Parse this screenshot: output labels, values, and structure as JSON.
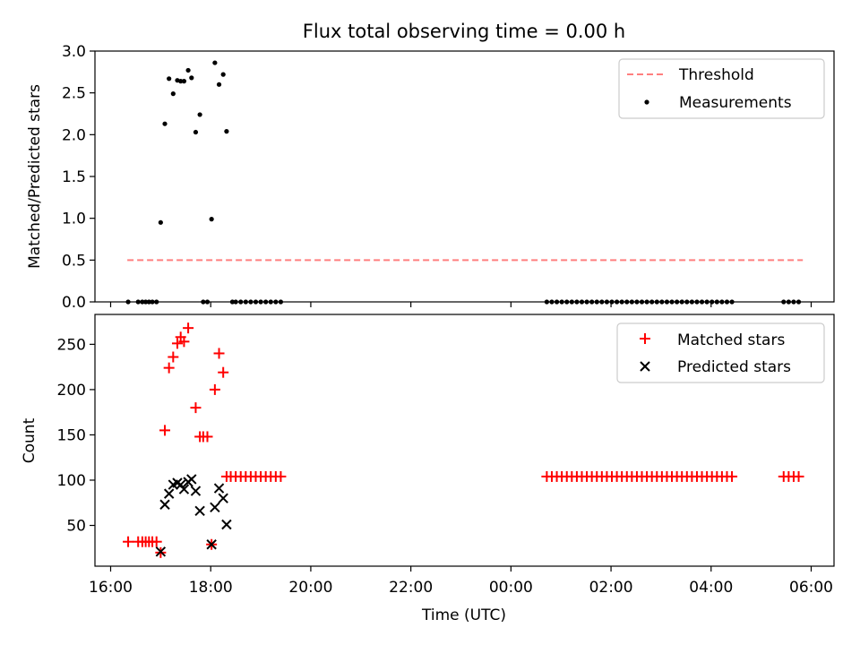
{
  "chart_data": [
    {
      "type": "scatter",
      "title": "Flux total observing time = 0.00 h",
      "xlabel": "",
      "ylabel": "Matched/Predicted stars",
      "xlim": [
        "16:00",
        "06:00"
      ],
      "ylim": [
        0,
        3.0
      ],
      "yticks": [
        "0.0",
        "0.5",
        "1.0",
        "1.5",
        "2.0",
        "2.5",
        "3.0"
      ],
      "grid": false,
      "legend": "top-right",
      "threshold": {
        "name": "Threshold",
        "value": 0.5,
        "x": [
          "16:20",
          "05:50"
        ],
        "color": "#ff7f7f",
        "style": "dashed"
      },
      "series": [
        {
          "name": "Measurements",
          "color": "#000000",
          "marker": "dot",
          "points": [
            [
              "16:21",
              0.0
            ],
            [
              "16:33",
              0.0
            ],
            [
              "16:38",
              0.0
            ],
            [
              "16:42",
              0.0
            ],
            [
              "16:46",
              0.0
            ],
            [
              "16:50",
              0.0
            ],
            [
              "16:55",
              0.0
            ],
            [
              "17:00",
              0.95
            ],
            [
              "17:05",
              2.13
            ],
            [
              "17:10",
              2.67
            ],
            [
              "17:15",
              2.49
            ],
            [
              "17:20",
              2.65
            ],
            [
              "17:24",
              2.64
            ],
            [
              "17:28",
              2.64
            ],
            [
              "17:33",
              2.77
            ],
            [
              "17:37",
              2.68
            ],
            [
              "17:42",
              2.03
            ],
            [
              "17:47",
              2.24
            ],
            [
              "17:51",
              0.0
            ],
            [
              "17:56",
              0.0
            ],
            [
              "18:01",
              0.99
            ],
            [
              "18:05",
              2.86
            ],
            [
              "18:10",
              2.6
            ],
            [
              "18:15",
              2.72
            ],
            [
              "18:19",
              2.04
            ],
            [
              "18:26",
              0.0
            ],
            [
              "18:30",
              0.0
            ],
            [
              "18:36",
              0.0
            ],
            [
              "18:42",
              0.0
            ],
            [
              "18:48",
              0.0
            ],
            [
              "18:54",
              0.0
            ],
            [
              "19:00",
              0.0
            ],
            [
              "19:06",
              0.0
            ],
            [
              "19:12",
              0.0
            ],
            [
              "19:18",
              0.0
            ],
            [
              "19:24",
              0.0
            ],
            [
              "00:43",
              0.0
            ],
            [
              "00:49",
              0.0
            ],
            [
              "00:55",
              0.0
            ],
            [
              "01:01",
              0.0
            ],
            [
              "01:07",
              0.0
            ],
            [
              "01:13",
              0.0
            ],
            [
              "01:19",
              0.0
            ],
            [
              "01:25",
              0.0
            ],
            [
              "01:31",
              0.0
            ],
            [
              "01:37",
              0.0
            ],
            [
              "01:43",
              0.0
            ],
            [
              "01:49",
              0.0
            ],
            [
              "01:55",
              0.0
            ],
            [
              "02:01",
              0.0
            ],
            [
              "02:07",
              0.0
            ],
            [
              "02:13",
              0.0
            ],
            [
              "02:19",
              0.0
            ],
            [
              "02:25",
              0.0
            ],
            [
              "02:31",
              0.0
            ],
            [
              "02:37",
              0.0
            ],
            [
              "02:43",
              0.0
            ],
            [
              "02:49",
              0.0
            ],
            [
              "02:55",
              0.0
            ],
            [
              "03:01",
              0.0
            ],
            [
              "03:07",
              0.0
            ],
            [
              "03:13",
              0.0
            ],
            [
              "03:19",
              0.0
            ],
            [
              "03:25",
              0.0
            ],
            [
              "03:31",
              0.0
            ],
            [
              "03:37",
              0.0
            ],
            [
              "03:43",
              0.0
            ],
            [
              "03:49",
              0.0
            ],
            [
              "03:55",
              0.0
            ],
            [
              "04:01",
              0.0
            ],
            [
              "04:07",
              0.0
            ],
            [
              "04:13",
              0.0
            ],
            [
              "04:19",
              0.0
            ],
            [
              "04:25",
              0.0
            ],
            [
              "05:27",
              0.0
            ],
            [
              "05:33",
              0.0
            ],
            [
              "05:39",
              0.0
            ],
            [
              "05:45",
              0.0
            ]
          ]
        }
      ]
    },
    {
      "type": "scatter",
      "title": "",
      "xlabel": "Time (UTC)",
      "ylabel": "Count",
      "xlim": [
        "16:00",
        "06:00"
      ],
      "xticks": [
        "16:00",
        "18:00",
        "20:00",
        "22:00",
        "00:00",
        "02:00",
        "04:00",
        "06:00"
      ],
      "ylim": [
        5,
        283
      ],
      "yticks": [
        "50",
        "100",
        "150",
        "200",
        "250"
      ],
      "grid": false,
      "legend": "top-right",
      "series": [
        {
          "name": "Matched stars",
          "color": "#ff0000",
          "marker": "plus",
          "points": [
            [
              "16:21",
              32
            ],
            [
              "16:33",
              32
            ],
            [
              "16:38",
              32
            ],
            [
              "16:42",
              32
            ],
            [
              "16:46",
              32
            ],
            [
              "16:50",
              32
            ],
            [
              "16:55",
              32
            ],
            [
              "17:00",
              20
            ],
            [
              "17:05",
              155
            ],
            [
              "17:10",
              224
            ],
            [
              "17:15",
              236
            ],
            [
              "17:20",
              251
            ],
            [
              "17:24",
              258
            ],
            [
              "17:28",
              253
            ],
            [
              "17:33",
              268
            ],
            [
              "17:42",
              180
            ],
            [
              "17:47",
              148
            ],
            [
              "17:51",
              148
            ],
            [
              "17:56",
              148
            ],
            [
              "18:01",
              29
            ],
            [
              "18:05",
              200
            ],
            [
              "18:10",
              240
            ],
            [
              "18:15",
              219
            ],
            [
              "18:19",
              104
            ],
            [
              "18:24",
              104
            ],
            [
              "18:30",
              104
            ],
            [
              "18:36",
              104
            ],
            [
              "18:42",
              104
            ],
            [
              "18:48",
              104
            ],
            [
              "18:54",
              104
            ],
            [
              "19:00",
              104
            ],
            [
              "19:06",
              104
            ],
            [
              "19:12",
              104
            ],
            [
              "19:18",
              104
            ],
            [
              "19:24",
              104
            ],
            [
              "00:43",
              104
            ],
            [
              "00:49",
              104
            ],
            [
              "00:55",
              104
            ],
            [
              "01:01",
              104
            ],
            [
              "01:07",
              104
            ],
            [
              "01:13",
              104
            ],
            [
              "01:19",
              104
            ],
            [
              "01:25",
              104
            ],
            [
              "01:31",
              104
            ],
            [
              "01:37",
              104
            ],
            [
              "01:43",
              104
            ],
            [
              "01:49",
              104
            ],
            [
              "01:55",
              104
            ],
            [
              "02:01",
              104
            ],
            [
              "02:07",
              104
            ],
            [
              "02:13",
              104
            ],
            [
              "02:19",
              104
            ],
            [
              "02:25",
              104
            ],
            [
              "02:31",
              104
            ],
            [
              "02:37",
              104
            ],
            [
              "02:43",
              104
            ],
            [
              "02:49",
              104
            ],
            [
              "02:55",
              104
            ],
            [
              "03:01",
              104
            ],
            [
              "03:07",
              104
            ],
            [
              "03:13",
              104
            ],
            [
              "03:19",
              104
            ],
            [
              "03:25",
              104
            ],
            [
              "03:31",
              104
            ],
            [
              "03:37",
              104
            ],
            [
              "03:43",
              104
            ],
            [
              "03:49",
              104
            ],
            [
              "03:55",
              104
            ],
            [
              "04:01",
              104
            ],
            [
              "04:07",
              104
            ],
            [
              "04:13",
              104
            ],
            [
              "04:19",
              104
            ],
            [
              "04:25",
              104
            ],
            [
              "05:27",
              104
            ],
            [
              "05:33",
              104
            ],
            [
              "05:39",
              104
            ],
            [
              "05:45",
              104
            ]
          ]
        },
        {
          "name": "Predicted stars",
          "color": "#000000",
          "marker": "x",
          "points": [
            [
              "17:00",
              21
            ],
            [
              "17:05",
              73
            ],
            [
              "17:10",
              85
            ],
            [
              "17:15",
              95
            ],
            [
              "17:20",
              97
            ],
            [
              "17:24",
              95
            ],
            [
              "17:28",
              90
            ],
            [
              "17:33",
              98
            ],
            [
              "17:37",
              101
            ],
            [
              "17:42",
              88
            ],
            [
              "17:47",
              66
            ],
            [
              "18:01",
              29
            ],
            [
              "18:05",
              70
            ],
            [
              "18:10",
              91
            ],
            [
              "18:15",
              80
            ],
            [
              "18:19",
              51
            ]
          ]
        }
      ]
    }
  ]
}
